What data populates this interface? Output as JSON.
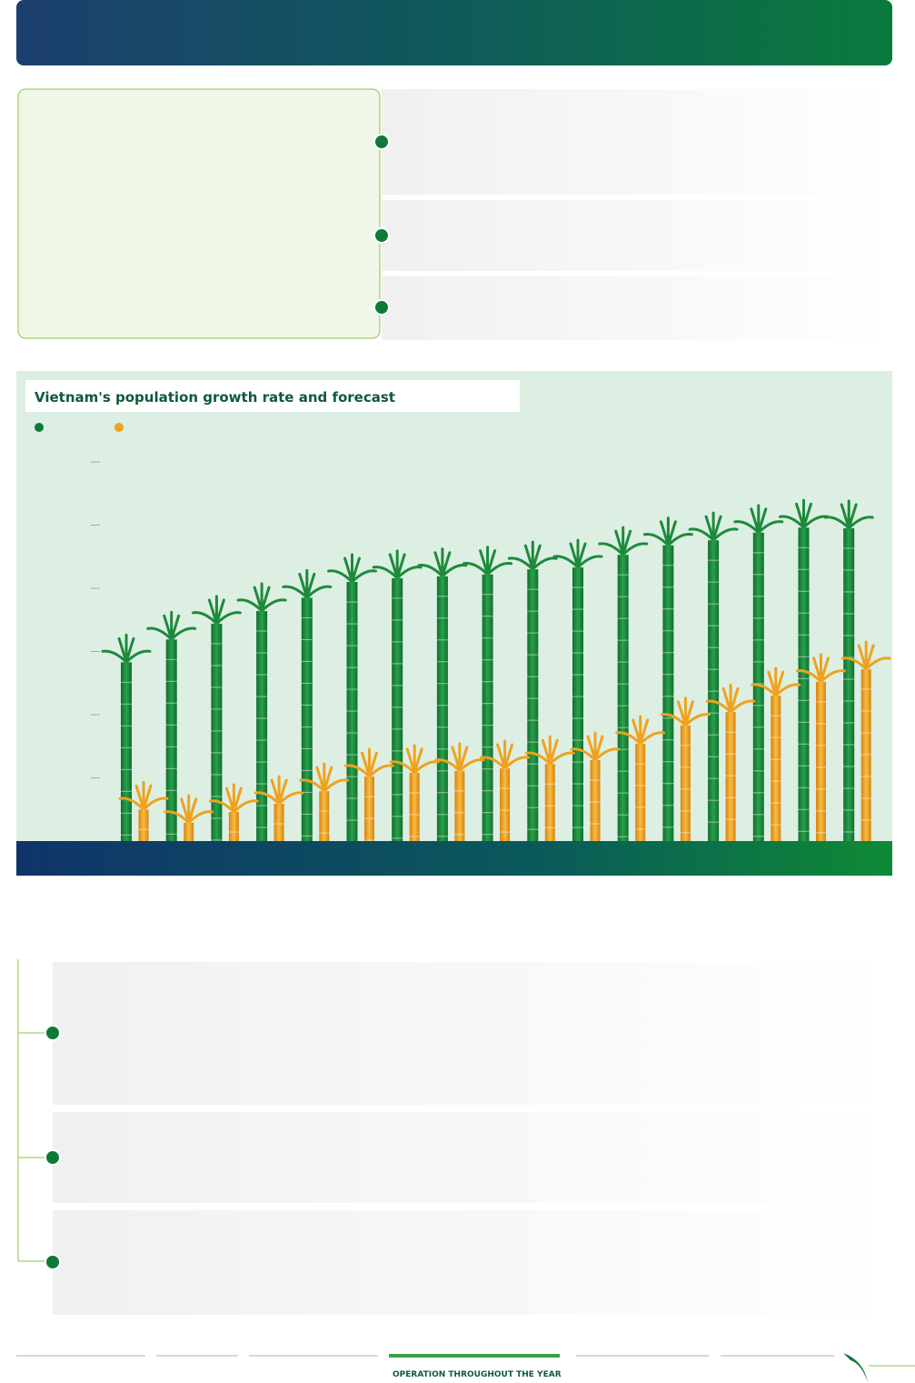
{
  "chart_data": {
    "type": "bar",
    "title": "Vietnam's population growth rate and forecast",
    "series": [
      {
        "color": "#1e8a3c",
        "values": [
          2.83,
          3.19,
          3.44,
          3.64,
          3.85,
          4.1,
          4.16,
          4.19,
          4.22,
          4.3,
          4.33,
          4.53,
          4.68,
          4.76,
          4.88,
          4.96,
          4.95
        ]
      },
      {
        "color": "#f0a21e",
        "values": [
          0.5,
          0.29,
          0.46,
          0.59,
          0.79,
          1.02,
          1.08,
          1.11,
          1.15,
          1.22,
          1.28,
          1.54,
          1.83,
          2.04,
          2.3,
          2.52,
          2.72
        ]
      }
    ],
    "ylim": [
      0,
      6
    ],
    "yticks": [
      1,
      2,
      3,
      4,
      5,
      6
    ]
  },
  "footer": {
    "section": "OPERATION THROUGHOUT THE YEAR"
  }
}
